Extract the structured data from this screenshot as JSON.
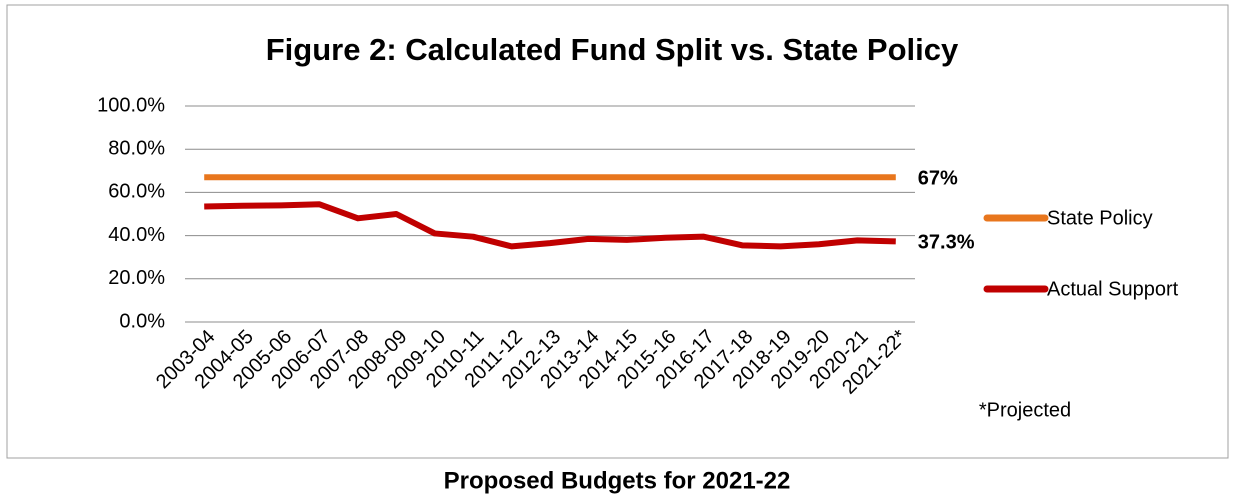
{
  "chart_data": {
    "type": "line",
    "title": "Figure 2: Calculated Fund Split vs. State Policy",
    "categories": [
      "2003-04",
      "2004-05",
      "2005-06",
      "2006-07",
      "2007-08",
      "2008-09",
      "2009-10",
      "2010-11",
      "2011-12",
      "2012-13",
      "2013-14",
      "2014-15",
      "2015-16",
      "2016-17",
      "2017-18",
      "2018-19",
      "2019-20",
      "2020-21",
      "2021-22*"
    ],
    "series": [
      {
        "name": "State Policy",
        "color": "#e8761d",
        "values": [
          67,
          67,
          67,
          67,
          67,
          67,
          67,
          67,
          67,
          67,
          67,
          67,
          67,
          67,
          67,
          67,
          67,
          67,
          67
        ],
        "value_labels": [
          null,
          null,
          null,
          null,
          null,
          null,
          null,
          null,
          null,
          null,
          null,
          null,
          null,
          null,
          null,
          null,
          null,
          null,
          "67%"
        ]
      },
      {
        "name": "Actual Support",
        "color": "#c00000",
        "values": [
          53.5,
          53.8,
          54,
          54.5,
          48,
          50,
          41,
          39.5,
          35,
          36.5,
          38.5,
          38,
          39,
          39.5,
          35.5,
          35,
          36,
          37.8,
          37.3
        ],
        "value_labels": [
          null,
          null,
          null,
          null,
          null,
          null,
          null,
          null,
          null,
          null,
          null,
          null,
          null,
          null,
          null,
          null,
          null,
          null,
          "37.3%"
        ]
      }
    ],
    "ylim": [
      0,
      100
    ],
    "yticks": [
      {
        "value": 0,
        "label": "0.0%"
      },
      {
        "value": 20,
        "label": "20.0%"
      },
      {
        "value": 40,
        "label": "40.0%"
      },
      {
        "value": 60,
        "label": "60.0%"
      },
      {
        "value": 80,
        "label": "80.0%"
      },
      {
        "value": 100,
        "label": "100.0%"
      }
    ],
    "grid": true,
    "legend": "right",
    "footnote": "*Projected"
  },
  "caption": "Proposed Budgets for 2021-22"
}
